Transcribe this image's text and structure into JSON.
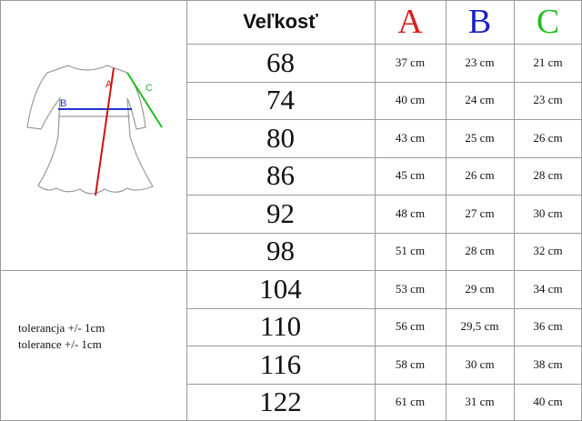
{
  "header": {
    "size": "Veľkosť",
    "a": "A",
    "b": "B",
    "c": "C"
  },
  "rows": [
    [
      "68",
      "37 cm",
      "23 cm",
      "21 cm"
    ],
    [
      "74",
      "40 cm",
      "24 cm",
      "23 cm"
    ],
    [
      "80",
      "43 cm",
      "25 cm",
      "26 cm"
    ],
    [
      "86",
      "45 cm",
      "26 cm",
      "28 cm"
    ],
    [
      "92",
      "48 cm",
      "27 cm",
      "30 cm"
    ],
    [
      "98",
      "51 cm",
      "28 cm",
      "32 cm"
    ],
    [
      "104",
      "53 cm",
      "29 cm",
      "34 cm"
    ],
    [
      "110",
      "56 cm",
      "29,5 cm",
      "36 cm"
    ],
    [
      "116",
      "58 cm",
      "30 cm",
      "38 cm"
    ],
    [
      "122",
      "61 cm",
      "31 cm",
      "40 cm"
    ]
  ],
  "diagram": {
    "label_a": "A",
    "label_b": "B",
    "label_c": "C"
  },
  "tolerance": [
    "tolerancja +/- 1cm",
    "tolerance +/- 1cm"
  ]
}
